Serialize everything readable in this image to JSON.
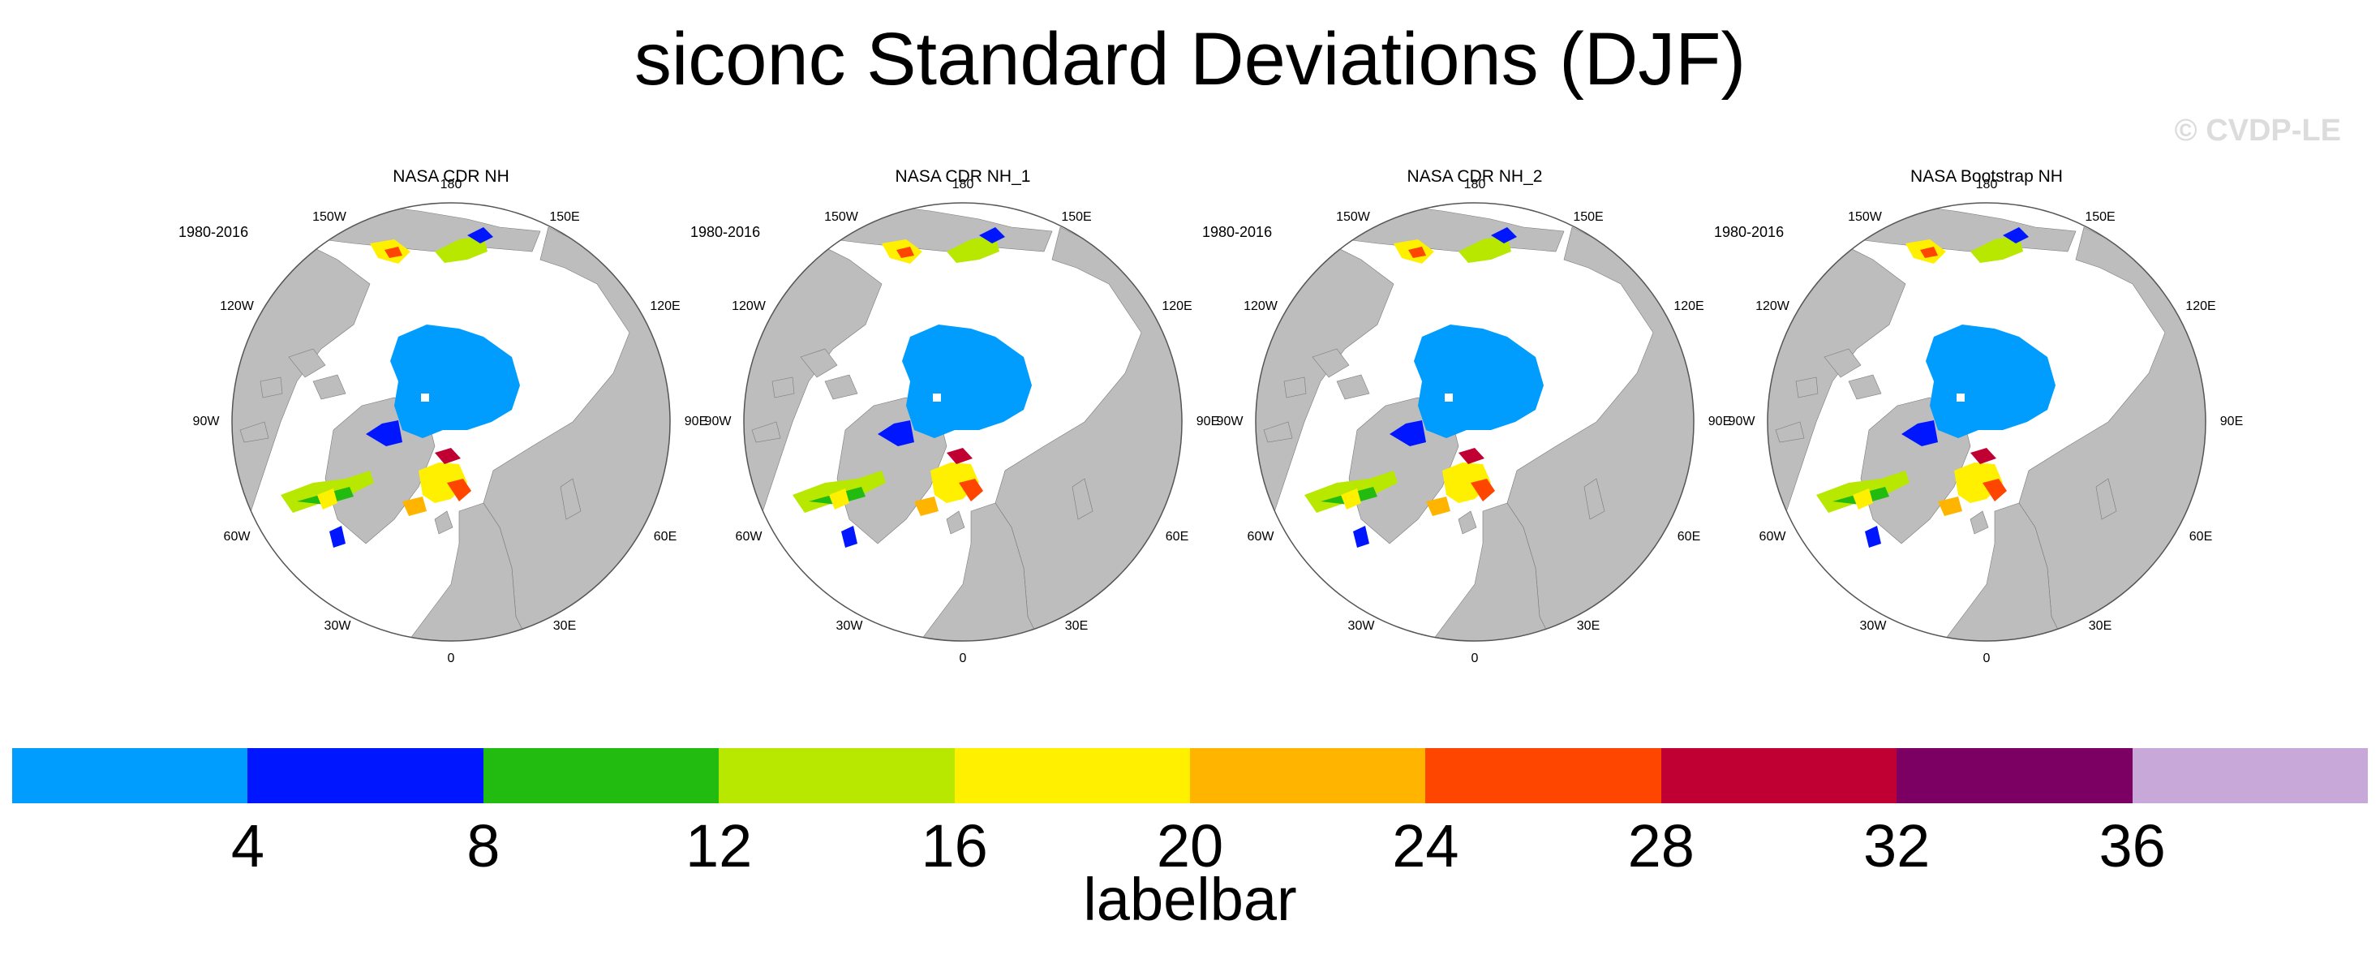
{
  "title": "siconc Standard Deviations (DJF)",
  "watermark": "© CVDP-LE",
  "colors": {
    "land": "#bdbdbd",
    "ocean": "#ffffff",
    "ice_base": "#009dff",
    "outline": "#444444"
  },
  "panels": [
    {
      "title": "NASA CDR NH",
      "period": "1980-2016"
    },
    {
      "title": "NASA CDR NH_1",
      "period": "1980-2016"
    },
    {
      "title": "NASA CDR NH_2",
      "period": "1980-2016"
    },
    {
      "title": "NASA Bootstrap NH",
      "period": "1980-2016"
    }
  ],
  "longitude_labels": [
    "180",
    "150E",
    "120E",
    "90E",
    "60E",
    "30E",
    "0",
    "30W",
    "60W",
    "90W",
    "120W",
    "150W"
  ],
  "labelbar": {
    "title": "labelbar",
    "colors": [
      "#009dff",
      "#0016ff",
      "#22bb10",
      "#b8e800",
      "#fff000",
      "#ffb400",
      "#ff4600",
      "#c00032",
      "#7c0064",
      "#c8a8d8"
    ],
    "ticks": [
      "4",
      "8",
      "12",
      "16",
      "20",
      "24",
      "28",
      "32",
      "36"
    ]
  }
}
